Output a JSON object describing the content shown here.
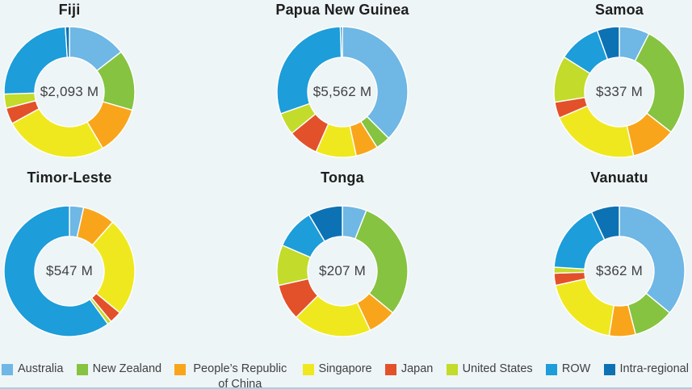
{
  "page": {
    "background_color": "#EDF5F6",
    "bottom_rule_color": "#AACFE3"
  },
  "legend": {
    "items": [
      {
        "key": "australia",
        "label": "Australia",
        "color": "#6FB7E4"
      },
      {
        "key": "new-zealand",
        "label": "New Zealand",
        "color": "#85C341"
      },
      {
        "key": "prc",
        "label": "People’s Republic of China",
        "color": "#F9A51B"
      },
      {
        "key": "singapore",
        "label": "Singapore",
        "color": "#EFE81F"
      },
      {
        "key": "japan",
        "label": "Japan",
        "color": "#E2512A"
      },
      {
        "key": "united-states",
        "label": "United States",
        "color": "#C3DB2A"
      },
      {
        "key": "row",
        "label": "ROW",
        "color": "#1D9DD9"
      },
      {
        "key": "intra-regional",
        "label": "Intra-regional",
        "color": "#0C72B4"
      }
    ]
  },
  "chart_data": {
    "type": "pie",
    "subtype": "donut",
    "categories": [
      "Australia",
      "New Zealand",
      "People’s Republic of China",
      "Singapore",
      "Japan",
      "United States",
      "ROW",
      "Intra-regional"
    ],
    "series_colors": [
      "#6FB7E4",
      "#85C341",
      "#F9A51B",
      "#EFE81F",
      "#E2512A",
      "#C3DB2A",
      "#1D9DD9",
      "#0C72B4"
    ],
    "values_unit": "percent share of total trade, estimated from arc angles",
    "legend_position": "bottom",
    "charts": [
      {
        "title": "Fiji",
        "center_label": "$2,093 M",
        "total_usd_million": 2093,
        "values": [
          14.5,
          15.0,
          12.0,
          25.5,
          4.0,
          3.5,
          24.5,
          1.0
        ]
      },
      {
        "title": "Papua New Guinea",
        "center_label": "$5,562 M",
        "total_usd_million": 5562,
        "values": [
          37.5,
          3.6,
          5.5,
          10.0,
          7.5,
          5.5,
          29.9,
          0.5
        ]
      },
      {
        "title": "Samoa",
        "center_label": "$337 M",
        "total_usd_million": 337,
        "values": [
          7.5,
          28.0,
          11.0,
          22.0,
          4.0,
          11.5,
          10.5,
          5.5
        ]
      },
      {
        "title": "Timor-Leste",
        "center_label": "$547 M",
        "total_usd_million": 547,
        "values": [
          3.5,
          0,
          8.0,
          24.5,
          3.0,
          1.0,
          60.0,
          0
        ]
      },
      {
        "title": "Tonga",
        "center_label": "$207 M",
        "total_usd_million": 207,
        "values": [
          6.0,
          30.0,
          7.0,
          19.5,
          9.0,
          10.0,
          10.0,
          8.5
        ]
      },
      {
        "title": "Vanuatu",
        "center_label": "$362 M",
        "total_usd_million": 362,
        "values": [
          36.0,
          10.0,
          6.5,
          19.0,
          3.0,
          1.5,
          17.0,
          7.0
        ]
      }
    ]
  }
}
